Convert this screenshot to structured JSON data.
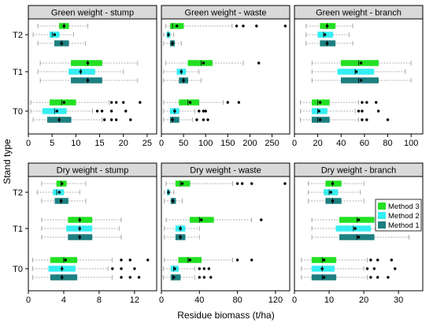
{
  "figure": {
    "y_axis_label": "Stand type",
    "x_axis_label": "Residue biomass (t/ha)",
    "legend": [
      {
        "label": "Method 3",
        "color": "#22e022"
      },
      {
        "label": "Method 2",
        "color": "#33eef2"
      },
      {
        "label": "Method 1",
        "color": "#1c7f80"
      }
    ]
  },
  "chart_data": [
    {
      "type": "boxplot",
      "title": "Green weight - stump",
      "categories": [
        "T2",
        "T1",
        "T0"
      ],
      "xlim": [
        0,
        27
      ],
      "xticks": [
        0,
        5,
        10,
        15,
        20,
        25
      ],
      "series": [
        {
          "name": "Method 3",
          "boxes": [
            {
              "min": 2,
              "q1": 6.5,
              "median": 7.5,
              "mean": 7.5,
              "q3": 8.5,
              "max": 12.5,
              "outliers": []
            },
            {
              "min": 2.5,
              "q1": 9,
              "median": 12.5,
              "mean": 12.5,
              "q3": 15.5,
              "max": 23,
              "outliers": []
            },
            {
              "min": 0.5,
              "q1": 4.5,
              "median": 7,
              "mean": 7.5,
              "q3": 10,
              "max": 17,
              "outliers": [
                17.5,
                18.5,
                20,
                23.5
              ]
            }
          ]
        },
        {
          "name": "Method 2",
          "boxes": [
            {
              "min": 1,
              "q1": 4.5,
              "median": 5,
              "mean": 5.5,
              "q3": 6.5,
              "max": 9.5,
              "outliers": []
            },
            {
              "min": 2,
              "q1": 8.5,
              "median": 11,
              "mean": 11,
              "q3": 14,
              "max": 20,
              "outliers": []
            },
            {
              "min": 0.5,
              "q1": 3,
              "median": 5.5,
              "mean": 6,
              "q3": 8,
              "max": 13.5,
              "outliers": [
                14.5,
                15.5,
                17.5,
                20.5
              ]
            }
          ]
        },
        {
          "name": "Method 1",
          "boxes": [
            {
              "min": 2,
              "q1": 5.5,
              "median": 7,
              "mean": 7,
              "q3": 8.5,
              "max": 12,
              "outliers": []
            },
            {
              "min": 2.5,
              "q1": 9,
              "median": 12.5,
              "mean": 12.5,
              "q3": 15.5,
              "max": 23,
              "outliers": []
            },
            {
              "min": 1,
              "q1": 4,
              "median": 6.5,
              "mean": 6.5,
              "q3": 9,
              "max": 15.5,
              "outliers": [
                16,
                17.5,
                18.5,
                21.5
              ]
            }
          ]
        }
      ]
    },
    {
      "type": "boxplot",
      "title": "Green weight - waste",
      "categories": [
        "T2",
        "T1",
        "T0"
      ],
      "xlim": [
        0,
        290
      ],
      "xticks": [
        0,
        50,
        100,
        150,
        200,
        250
      ],
      "series": [
        {
          "name": "Method 3",
          "boxes": [
            {
              "min": 10,
              "q1": 20,
              "median": 25,
              "mean": 35,
              "q3": 50,
              "max": 160,
              "outliers": [
                170,
                185,
                215,
                280
              ]
            },
            {
              "min": 10,
              "q1": 60,
              "median": 90,
              "mean": 95,
              "q3": 115,
              "max": 185,
              "outliers": [
                220
              ]
            },
            {
              "min": 5,
              "q1": 40,
              "median": 60,
              "mean": 65,
              "q3": 85,
              "max": 140,
              "outliers": [
                150,
                175
              ]
            }
          ]
        },
        {
          "name": "Method 2",
          "boxes": [
            {
              "min": 5,
              "q1": 12,
              "median": 15,
              "mean": 16,
              "q3": 20,
              "max": 28,
              "outliers": []
            },
            {
              "min": 5,
              "q1": 35,
              "median": 45,
              "mean": 45,
              "q3": 55,
              "max": 85,
              "outliers": []
            },
            {
              "min": 5,
              "q1": 20,
              "median": 30,
              "mean": 30,
              "q3": 40,
              "max": 75,
              "outliers": [
                85,
                95,
                100
              ]
            }
          ]
        },
        {
          "name": "Method 1",
          "boxes": [
            {
              "min": 5,
              "q1": 20,
              "median": 25,
              "mean": 25,
              "q3": 30,
              "max": 45,
              "outliers": []
            },
            {
              "min": 5,
              "q1": 40,
              "median": 50,
              "mean": 50,
              "q3": 60,
              "max": 90,
              "outliers": []
            },
            {
              "min": 5,
              "q1": 20,
              "median": 25,
              "mean": 25,
              "q3": 40,
              "max": 70,
              "outliers": [
                80,
                95,
                105
              ]
            }
          ]
        }
      ]
    },
    {
      "type": "boxplot",
      "title": "Green weight - branch",
      "categories": [
        "T2",
        "T1",
        "T0"
      ],
      "xlim": [
        0,
        110
      ],
      "xticks": [
        0,
        20,
        40,
        60,
        80,
        100
      ],
      "series": [
        {
          "name": "Method 3",
          "boxes": [
            {
              "min": 10,
              "q1": 22,
              "median": 28,
              "mean": 28,
              "q3": 35,
              "max": 50,
              "outliers": []
            },
            {
              "min": 15,
              "q1": 40,
              "median": 55,
              "mean": 57,
              "q3": 72,
              "max": 100,
              "outliers": []
            },
            {
              "min": 5,
              "q1": 15,
              "median": 20,
              "mean": 22,
              "q3": 30,
              "max": 55,
              "outliers": [
                58,
                62,
                70
              ]
            }
          ]
        },
        {
          "name": "Method 2",
          "boxes": [
            {
              "min": 10,
              "q1": 20,
              "median": 25,
              "mean": 26,
              "q3": 33,
              "max": 47,
              "outliers": []
            },
            {
              "min": 15,
              "q1": 37,
              "median": 52,
              "mean": 53,
              "q3": 68,
              "max": 95,
              "outliers": []
            },
            {
              "min": 5,
              "q1": 15,
              "median": 20,
              "mean": 21,
              "q3": 28,
              "max": 52,
              "outliers": [
                55,
                58,
                72
              ]
            }
          ]
        },
        {
          "name": "Method 1",
          "boxes": [
            {
              "min": 10,
              "q1": 22,
              "median": 28,
              "mean": 28,
              "q3": 35,
              "max": 50,
              "outliers": []
            },
            {
              "min": 15,
              "q1": 40,
              "median": 55,
              "mean": 57,
              "q3": 72,
              "max": 100,
              "outliers": []
            },
            {
              "min": 5,
              "q1": 15,
              "median": 20,
              "mean": 22,
              "q3": 30,
              "max": 55,
              "outliers": [
                58,
                62,
                80
              ]
            }
          ]
        }
      ]
    },
    {
      "type": "boxplot",
      "title": "Dry weight - stump",
      "categories": [
        "T2",
        "T1",
        "T0"
      ],
      "xlim": [
        0,
        14.5
      ],
      "xticks": [
        0,
        4,
        8,
        12
      ],
      "series": [
        {
          "name": "Method 3",
          "boxes": [
            {
              "min": 1.5,
              "q1": 3.2,
              "median": 3.7,
              "mean": 3.8,
              "q3": 4.3,
              "max": 6.5,
              "outliers": []
            },
            {
              "min": 1.5,
              "q1": 4.5,
              "median": 5.8,
              "mean": 5.8,
              "q3": 7.2,
              "max": 10.5,
              "outliers": []
            },
            {
              "min": 0.5,
              "q1": 2.5,
              "median": 4,
              "mean": 4.2,
              "q3": 5.5,
              "max": 9.5,
              "outliers": [
                10.5,
                11.5,
                13.5
              ]
            }
          ]
        },
        {
          "name": "Method 2",
          "boxes": [
            {
              "min": 1,
              "q1": 2.8,
              "median": 3.2,
              "mean": 3.5,
              "q3": 4,
              "max": 5.8,
              "outliers": []
            },
            {
              "min": 1.5,
              "q1": 4.3,
              "median": 5.8,
              "mean": 5.8,
              "q3": 7.2,
              "max": 10.3,
              "outliers": []
            },
            {
              "min": 0.5,
              "q1": 2.3,
              "median": 3.8,
              "mean": 3.8,
              "q3": 5.3,
              "max": 9,
              "outliers": [
                9.5,
                10.5,
                12
              ]
            }
          ]
        },
        {
          "name": "Method 1",
          "boxes": [
            {
              "min": 1.5,
              "q1": 3,
              "median": 3.7,
              "mean": 3.7,
              "q3": 4.5,
              "max": 6.5,
              "outliers": []
            },
            {
              "min": 1.5,
              "q1": 4.5,
              "median": 5.8,
              "mean": 5.8,
              "q3": 7.2,
              "max": 10.5,
              "outliers": []
            },
            {
              "min": 0.5,
              "q1": 2.5,
              "median": 3.8,
              "mean": 3.8,
              "q3": 5.5,
              "max": 9.5,
              "outliers": [
                10.5,
                11.5,
                12.5
              ]
            }
          ]
        }
      ]
    },
    {
      "type": "boxplot",
      "title": "Dry weight - waste",
      "categories": [
        "T2",
        "T1",
        "T0"
      ],
      "xlim": [
        0,
        135
      ],
      "xticks": [
        0,
        40,
        80,
        120
      ],
      "series": [
        {
          "name": "Method 3",
          "boxes": [
            {
              "min": 5,
              "q1": 15,
              "median": 20,
              "mean": 22,
              "q3": 30,
              "max": 75,
              "outliers": [
                80,
                85,
                95,
                130
              ]
            },
            {
              "min": 5,
              "q1": 30,
              "median": 40,
              "mean": 42,
              "q3": 55,
              "max": 95,
              "outliers": [
                105
              ]
            },
            {
              "min": 3,
              "q1": 18,
              "median": 28,
              "mean": 30,
              "q3": 42,
              "max": 75,
              "outliers": [
                80,
                95
              ]
            }
          ]
        },
        {
          "name": "Method 2",
          "boxes": [
            {
              "min": 3,
              "q1": 6,
              "median": 7,
              "mean": 7.5,
              "q3": 9,
              "max": 13,
              "outliers": []
            },
            {
              "min": 3,
              "q1": 15,
              "median": 20,
              "mean": 20,
              "q3": 25,
              "max": 40,
              "outliers": []
            },
            {
              "min": 2,
              "q1": 10,
              "median": 13,
              "mean": 14,
              "q3": 18,
              "max": 35,
              "outliers": [
                40,
                45,
                50
              ]
            }
          ]
        },
        {
          "name": "Method 1",
          "boxes": [
            {
              "min": 3,
              "q1": 10,
              "median": 12,
              "mean": 12,
              "q3": 15,
              "max": 22,
              "outliers": []
            },
            {
              "min": 3,
              "q1": 15,
              "median": 20,
              "mean": 20,
              "q3": 25,
              "max": 40,
              "outliers": []
            },
            {
              "min": 2,
              "q1": 10,
              "median": 12,
              "mean": 13,
              "q3": 20,
              "max": 35,
              "outliers": [
                40,
                45,
                52
              ]
            }
          ]
        }
      ]
    },
    {
      "type": "boxplot",
      "title": "Dry weight - branch",
      "categories": [
        "T2",
        "T1",
        "T0"
      ],
      "xlim": [
        0,
        37
      ],
      "xticks": [
        0,
        10,
        20,
        30
      ],
      "series": [
        {
          "name": "Method 3",
          "boxes": [
            {
              "min": 4,
              "q1": 9,
              "median": 11,
              "mean": 11,
              "q3": 13.5,
              "max": 20,
              "outliers": []
            },
            {
              "min": 5,
              "q1": 13,
              "median": 18,
              "mean": 18.5,
              "q3": 23,
              "max": 33,
              "outliers": []
            },
            {
              "min": 2,
              "q1": 5,
              "median": 8,
              "mean": 8.5,
              "q3": 12,
              "max": 21,
              "outliers": [
                22,
                24,
                28
              ]
            }
          ]
        },
        {
          "name": "Method 2",
          "boxes": [
            {
              "min": 4,
              "q1": 8.5,
              "median": 10,
              "mean": 10.5,
              "q3": 12.5,
              "max": 19,
              "outliers": []
            },
            {
              "min": 5,
              "q1": 12,
              "median": 17,
              "mean": 17.5,
              "q3": 22,
              "max": 32,
              "outliers": []
            },
            {
              "min": 2,
              "q1": 5,
              "median": 8,
              "mean": 8,
              "q3": 11.5,
              "max": 20,
              "outliers": [
                21,
                23,
                29
              ]
            }
          ]
        },
        {
          "name": "Method 1",
          "boxes": [
            {
              "min": 4,
              "q1": 9,
              "median": 11,
              "mean": 11,
              "q3": 13.5,
              "max": 20,
              "outliers": []
            },
            {
              "min": 5,
              "q1": 13,
              "median": 18,
              "mean": 18.5,
              "q3": 23,
              "max": 33,
              "outliers": []
            },
            {
              "min": 2,
              "q1": 5,
              "median": 8,
              "mean": 8.5,
              "q3": 12,
              "max": 21,
              "outliers": [
                22,
                24,
                27
              ]
            }
          ]
        }
      ]
    }
  ]
}
